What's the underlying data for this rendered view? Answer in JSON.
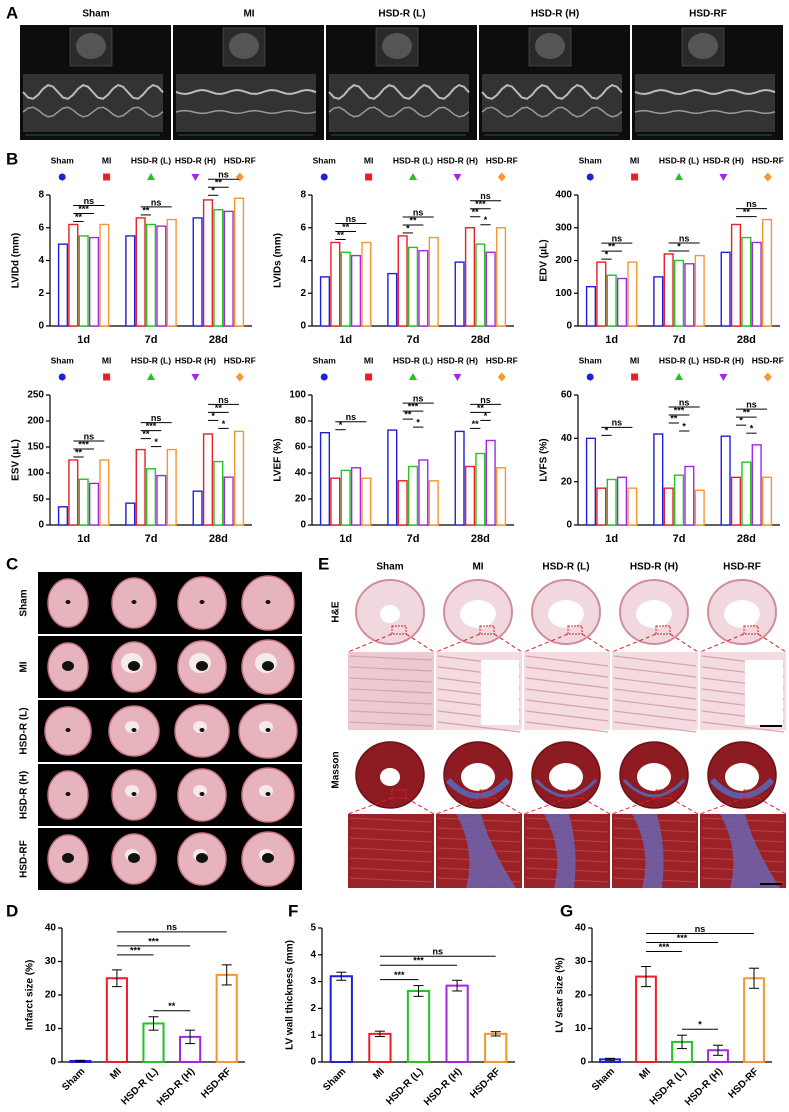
{
  "panel_labels": {
    "a": "A",
    "b": "B",
    "c": "C",
    "d": "D",
    "e": "E",
    "f": "F",
    "g": "G"
  },
  "panel_a": {
    "columns": [
      "Sham",
      "MI",
      "HSD-R (L)",
      "HSD-R (H)",
      "HSD-RF"
    ]
  },
  "chart_data": [
    {
      "type": "grouped-bar",
      "ylabel": "LVIDd (mm)",
      "categories": [
        "1d",
        "7d",
        "28d"
      ],
      "series": [
        {
          "name": "Sham",
          "color": "#1f1fe0",
          "marker": "circle",
          "values": [
            5.0,
            5.5,
            6.6
          ]
        },
        {
          "name": "MI",
          "color": "#ee1c24",
          "marker": "square",
          "values": [
            6.2,
            6.6,
            7.7
          ]
        },
        {
          "name": "HSD-R (L)",
          "color": "#22c322",
          "marker": "triangle",
          "values": [
            5.5,
            6.2,
            7.1
          ]
        },
        {
          "name": "HSD-R (H)",
          "color": "#a326e8",
          "marker": "down-triangle",
          "values": [
            5.4,
            6.1,
            7.0
          ]
        },
        {
          "name": "HSD-RF",
          "color": "#f5962e",
          "marker": "diamond",
          "values": [
            6.2,
            6.5,
            7.8
          ]
        }
      ],
      "ylim": [
        0,
        8
      ],
      "yticks": [
        0,
        2,
        4,
        6,
        8
      ],
      "annotations": [
        {
          "category": "1d",
          "from": "MI",
          "to": "HSD-R (L)",
          "text": "**"
        },
        {
          "category": "1d",
          "from": "MI",
          "to": "HSD-R (H)",
          "text": "***"
        },
        {
          "category": "1d",
          "from": "MI",
          "to": "HSD-RF",
          "text": "ns"
        },
        {
          "category": "7d",
          "from": "MI",
          "to": "HSD-R (L)",
          "text": "**"
        },
        {
          "category": "7d",
          "from": "MI",
          "to": "HSD-RF",
          "text": "ns"
        },
        {
          "category": "28d",
          "from": "MI",
          "to": "HSD-R (L)",
          "text": "*"
        },
        {
          "category": "28d",
          "from": "MI",
          "to": "HSD-R (H)",
          "text": "**"
        },
        {
          "category": "28d",
          "from": "MI",
          "to": "HSD-RF",
          "text": "ns"
        }
      ]
    },
    {
      "type": "grouped-bar",
      "ylabel": "LVIDs (mm)",
      "categories": [
        "1d",
        "7d",
        "28d"
      ],
      "series": [
        {
          "name": "Sham",
          "color": "#1f1fe0",
          "marker": "circle",
          "values": [
            3.0,
            3.2,
            3.9
          ]
        },
        {
          "name": "MI",
          "color": "#ee1c24",
          "marker": "square",
          "values": [
            5.1,
            5.5,
            6.0
          ]
        },
        {
          "name": "HSD-R (L)",
          "color": "#22c322",
          "marker": "triangle",
          "values": [
            4.5,
            4.8,
            5.0
          ]
        },
        {
          "name": "HSD-R (H)",
          "color": "#a326e8",
          "marker": "down-triangle",
          "values": [
            4.3,
            4.6,
            4.5
          ]
        },
        {
          "name": "HSD-RF",
          "color": "#f5962e",
          "marker": "diamond",
          "values": [
            5.1,
            5.4,
            6.0
          ]
        }
      ],
      "ylim": [
        0,
        8
      ],
      "yticks": [
        0,
        2,
        4,
        6,
        8
      ],
      "annotations": [
        {
          "category": "1d",
          "from": "MI",
          "to": "HSD-R (L)",
          "text": "**"
        },
        {
          "category": "1d",
          "from": "MI",
          "to": "HSD-R (H)",
          "text": "**"
        },
        {
          "category": "1d",
          "from": "MI",
          "to": "HSD-RF",
          "text": "ns"
        },
        {
          "category": "7d",
          "from": "MI",
          "to": "HSD-R (L)",
          "text": "*"
        },
        {
          "category": "7d",
          "from": "MI",
          "to": "HSD-R (H)",
          "text": "**"
        },
        {
          "category": "7d",
          "from": "MI",
          "to": "HSD-RF",
          "text": "ns"
        },
        {
          "category": "28d",
          "from": "HSD-R (L)",
          "to": "HSD-R (H)",
          "text": "*"
        },
        {
          "category": "28d",
          "from": "MI",
          "to": "HSD-R (L)",
          "text": "**"
        },
        {
          "category": "28d",
          "from": "MI",
          "to": "HSD-R (H)",
          "text": "***"
        },
        {
          "category": "28d",
          "from": "MI",
          "to": "HSD-RF",
          "text": "ns"
        }
      ]
    },
    {
      "type": "grouped-bar",
      "ylabel": "EDV (μL)",
      "categories": [
        "1d",
        "7d",
        "28d"
      ],
      "series": [
        {
          "name": "Sham",
          "color": "#1f1fe0",
          "marker": "circle",
          "values": [
            120,
            150,
            225
          ]
        },
        {
          "name": "MI",
          "color": "#ee1c24",
          "marker": "square",
          "values": [
            195,
            220,
            310
          ]
        },
        {
          "name": "HSD-R (L)",
          "color": "#22c322",
          "marker": "triangle",
          "values": [
            155,
            200,
            270
          ]
        },
        {
          "name": "HSD-R (H)",
          "color": "#a326e8",
          "marker": "down-triangle",
          "values": [
            145,
            190,
            255
          ]
        },
        {
          "name": "HSD-RF",
          "color": "#f5962e",
          "marker": "diamond",
          "values": [
            195,
            215,
            325
          ]
        }
      ],
      "ylim": [
        0,
        400
      ],
      "yticks": [
        0,
        100,
        200,
        300,
        400
      ],
      "annotations": [
        {
          "category": "1d",
          "from": "MI",
          "to": "HSD-R (L)",
          "text": "*"
        },
        {
          "category": "1d",
          "from": "MI",
          "to": "HSD-R (H)",
          "text": "**"
        },
        {
          "category": "1d",
          "from": "MI",
          "to": "HSD-RF",
          "text": "ns"
        },
        {
          "category": "7d",
          "from": "MI",
          "to": "HSD-R (H)",
          "text": "*"
        },
        {
          "category": "7d",
          "from": "MI",
          "to": "HSD-RF",
          "text": "ns"
        },
        {
          "category": "28d",
          "from": "MI",
          "to": "HSD-R (H)",
          "text": "**"
        },
        {
          "category": "28d",
          "from": "MI",
          "to": "HSD-RF",
          "text": "ns"
        }
      ]
    },
    {
      "type": "grouped-bar",
      "ylabel": "ESV (μL)",
      "categories": [
        "1d",
        "7d",
        "28d"
      ],
      "series": [
        {
          "name": "Sham",
          "color": "#1f1fe0",
          "marker": "circle",
          "values": [
            35,
            42,
            65
          ]
        },
        {
          "name": "MI",
          "color": "#ee1c24",
          "marker": "square",
          "values": [
            125,
            145,
            175
          ]
        },
        {
          "name": "HSD-R (L)",
          "color": "#22c322",
          "marker": "triangle",
          "values": [
            88,
            108,
            122
          ]
        },
        {
          "name": "HSD-R (H)",
          "color": "#a326e8",
          "marker": "down-triangle",
          "values": [
            80,
            95,
            92
          ]
        },
        {
          "name": "HSD-RF",
          "color": "#f5962e",
          "marker": "diamond",
          "values": [
            125,
            145,
            180
          ]
        }
      ],
      "ylim": [
        0,
        250
      ],
      "yticks": [
        0,
        50,
        100,
        150,
        200,
        250
      ],
      "annotations": [
        {
          "category": "1d",
          "from": "MI",
          "to": "HSD-R (L)",
          "text": "**"
        },
        {
          "category": "1d",
          "from": "MI",
          "to": "HSD-R (H)",
          "text": "***"
        },
        {
          "category": "1d",
          "from": "MI",
          "to": "HSD-RF",
          "text": "ns"
        },
        {
          "category": "7d",
          "from": "HSD-R (L)",
          "to": "HSD-R (H)",
          "text": "*"
        },
        {
          "category": "7d",
          "from": "MI",
          "to": "HSD-R (L)",
          "text": "**"
        },
        {
          "category": "7d",
          "from": "MI",
          "to": "HSD-R (H)",
          "text": "***"
        },
        {
          "category": "7d",
          "from": "MI",
          "to": "HSD-RF",
          "text": "ns"
        },
        {
          "category": "28d",
          "from": "HSD-R (L)",
          "to": "HSD-R (H)",
          "text": "*"
        },
        {
          "category": "28d",
          "from": "MI",
          "to": "HSD-R (L)",
          "text": "*"
        },
        {
          "category": "28d",
          "from": "MI",
          "to": "HSD-R (H)",
          "text": "**"
        },
        {
          "category": "28d",
          "from": "MI",
          "to": "HSD-RF",
          "text": "ns"
        }
      ]
    },
    {
      "type": "grouped-bar",
      "ylabel": "LVEF (%)",
      "categories": [
        "1d",
        "7d",
        "28d"
      ],
      "series": [
        {
          "name": "Sham",
          "color": "#1f1fe0",
          "marker": "circle",
          "values": [
            71,
            73,
            72
          ]
        },
        {
          "name": "MI",
          "color": "#ee1c24",
          "marker": "square",
          "values": [
            36,
            34,
            45
          ]
        },
        {
          "name": "HSD-R (L)",
          "color": "#22c322",
          "marker": "triangle",
          "values": [
            42,
            45,
            55
          ]
        },
        {
          "name": "HSD-R (H)",
          "color": "#a326e8",
          "marker": "down-triangle",
          "values": [
            44,
            50,
            65
          ]
        },
        {
          "name": "HSD-RF",
          "color": "#f5962e",
          "marker": "diamond",
          "values": [
            36,
            34,
            44
          ]
        }
      ],
      "ylim": [
        0,
        100
      ],
      "yticks": [
        0,
        20,
        40,
        60,
        80,
        100
      ],
      "annotations": [
        {
          "category": "1d",
          "from": "MI",
          "to": "HSD-R (L)",
          "text": "*"
        },
        {
          "category": "1d",
          "from": "MI",
          "to": "HSD-RF",
          "text": "ns"
        },
        {
          "category": "7d",
          "from": "HSD-R (L)",
          "to": "HSD-R (H)",
          "text": "*"
        },
        {
          "category": "7d",
          "from": "MI",
          "to": "HSD-R (L)",
          "text": "**"
        },
        {
          "category": "7d",
          "from": "MI",
          "to": "HSD-R (H)",
          "text": "***"
        },
        {
          "category": "7d",
          "from": "MI",
          "to": "HSD-RF",
          "text": "ns"
        },
        {
          "category": "28d",
          "from": "MI",
          "to": "HSD-R (L)",
          "text": "**"
        },
        {
          "category": "28d",
          "from": "HSD-R (L)",
          "to": "HSD-R (H)",
          "text": "*"
        },
        {
          "category": "28d",
          "from": "MI",
          "to": "HSD-R (H)",
          "text": "**"
        },
        {
          "category": "28d",
          "from": "MI",
          "to": "HSD-RF",
          "text": "ns"
        }
      ]
    },
    {
      "type": "grouped-bar",
      "ylabel": "LVFS (%)",
      "categories": [
        "1d",
        "7d",
        "28d"
      ],
      "series": [
        {
          "name": "Sham",
          "color": "#1f1fe0",
          "marker": "circle",
          "values": [
            40,
            42,
            41
          ]
        },
        {
          "name": "MI",
          "color": "#ee1c24",
          "marker": "square",
          "values": [
            17,
            17,
            22
          ]
        },
        {
          "name": "HSD-R (L)",
          "color": "#22c322",
          "marker": "triangle",
          "values": [
            21,
            23,
            29
          ]
        },
        {
          "name": "HSD-R (H)",
          "color": "#a326e8",
          "marker": "down-triangle",
          "values": [
            22,
            27,
            37
          ]
        },
        {
          "name": "HSD-RF",
          "color": "#f5962e",
          "marker": "diamond",
          "values": [
            17,
            16,
            22
          ]
        }
      ],
      "ylim": [
        0,
        60
      ],
      "yticks": [
        0,
        20,
        40,
        60
      ],
      "annotations": [
        {
          "category": "1d",
          "from": "MI",
          "to": "HSD-R (L)",
          "text": "*"
        },
        {
          "category": "1d",
          "from": "MI",
          "to": "HSD-RF",
          "text": "ns"
        },
        {
          "category": "7d",
          "from": "HSD-R (L)",
          "to": "HSD-R (H)",
          "text": "*"
        },
        {
          "category": "7d",
          "from": "MI",
          "to": "HSD-R (L)",
          "text": "**"
        },
        {
          "category": "7d",
          "from": "MI",
          "to": "HSD-R (H)",
          "text": "***"
        },
        {
          "category": "7d",
          "from": "MI",
          "to": "HSD-RF",
          "text": "ns"
        },
        {
          "category": "28d",
          "from": "HSD-R (L)",
          "to": "HSD-R (H)",
          "text": "*"
        },
        {
          "category": "28d",
          "from": "MI",
          "to": "HSD-R (L)",
          "text": "*"
        },
        {
          "category": "28d",
          "from": "MI",
          "to": "HSD-R (H)",
          "text": "**"
        },
        {
          "category": "28d",
          "from": "MI",
          "to": "HSD-RF",
          "text": "ns"
        }
      ]
    },
    {
      "type": "bar",
      "ylabel": "Infarct size (%)",
      "categories": [
        "Sham",
        "MI",
        "HSD-R (L)",
        "HSD-R (H)",
        "HSD-RF"
      ],
      "values": [
        0.3,
        25,
        11.5,
        7.5,
        26
      ],
      "errors": [
        0.2,
        2.5,
        2,
        2,
        3
      ],
      "colors": [
        "#1f1fe0",
        "#ee1c24",
        "#22c322",
        "#a326e8",
        "#f5962e"
      ],
      "ylim": [
        0,
        40
      ],
      "yticks": [
        0,
        10,
        20,
        30,
        40
      ],
      "annotations": [
        {
          "from": "HSD-R (L)",
          "to": "HSD-R (H)",
          "text": "**"
        },
        {
          "from": "MI",
          "to": "HSD-R (L)",
          "text": "***"
        },
        {
          "from": "MI",
          "to": "HSD-R (H)",
          "text": "***"
        },
        {
          "from": "MI",
          "to": "HSD-RF",
          "text": "ns"
        }
      ]
    },
    {
      "type": "bar",
      "ylabel": "LV wall thickness (mm)",
      "categories": [
        "Sham",
        "MI",
        "HSD-R (L)",
        "HSD-R (H)",
        "HSD-RF"
      ],
      "values": [
        3.2,
        1.05,
        2.65,
        2.85,
        1.05
      ],
      "errors": [
        0.15,
        0.1,
        0.2,
        0.2,
        0.08
      ],
      "colors": [
        "#1f1fe0",
        "#ee1c24",
        "#22c322",
        "#a326e8",
        "#f5962e"
      ],
      "ylim": [
        0,
        5
      ],
      "yticks": [
        0,
        1,
        2,
        3,
        4,
        5
      ],
      "annotations": [
        {
          "from": "MI",
          "to": "HSD-R (L)",
          "text": "***"
        },
        {
          "from": "MI",
          "to": "HSD-R (H)",
          "text": "***"
        },
        {
          "from": "MI",
          "to": "HSD-RF",
          "text": "ns"
        }
      ]
    },
    {
      "type": "bar",
      "ylabel": "LV scar size (%)",
      "categories": [
        "Sham",
        "MI",
        "HSD-R (L)",
        "HSD-R (H)",
        "HSD-RF"
      ],
      "values": [
        0.8,
        25.5,
        6,
        3.5,
        25
      ],
      "errors": [
        0.3,
        3,
        2,
        1.5,
        3
      ],
      "colors": [
        "#1f1fe0",
        "#ee1c24",
        "#22c322",
        "#a326e8",
        "#f5962e"
      ],
      "ylim": [
        0,
        40
      ],
      "yticks": [
        0,
        10,
        20,
        30,
        40
      ],
      "annotations": [
        {
          "from": "HSD-R (L)",
          "to": "HSD-R (H)",
          "text": "*"
        },
        {
          "from": "MI",
          "to": "HSD-R (L)",
          "text": "***"
        },
        {
          "from": "MI",
          "to": "HSD-R (H)",
          "text": "***"
        },
        {
          "from": "MI",
          "to": "HSD-RF",
          "text": "ns"
        }
      ]
    }
  ],
  "panel_c": {
    "rows": [
      "Sham",
      "MI",
      "HSD-R (L)",
      "HSD-R (H)",
      "HSD-RF"
    ]
  },
  "panel_e": {
    "columns": [
      "Sham",
      "MI",
      "HSD-R (L)",
      "HSD-R (H)",
      "HSD-RF"
    ],
    "rows": [
      "H&E",
      "Masson"
    ]
  }
}
